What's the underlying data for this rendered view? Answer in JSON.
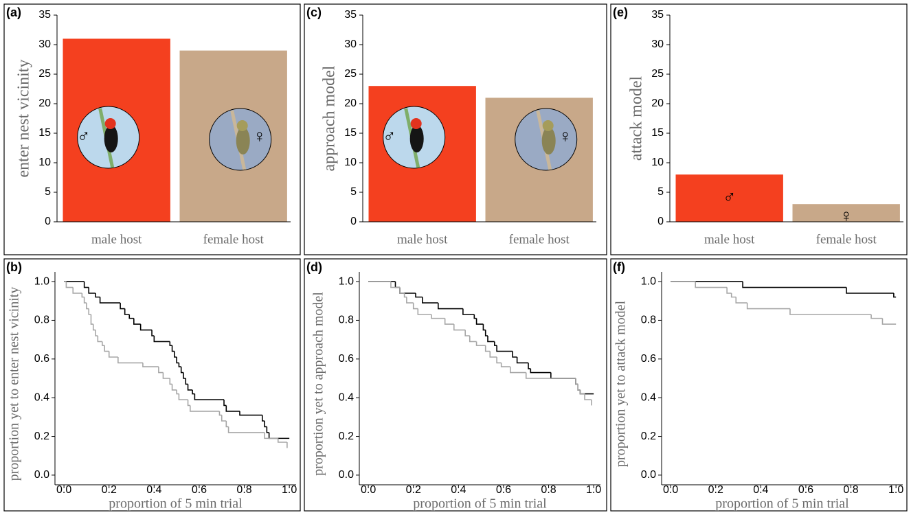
{
  "chart_data": [
    {
      "type": "bar",
      "label": "(a)",
      "ylabel": "enter nest vicinity",
      "categories": [
        "male host",
        "female host"
      ],
      "values": [
        31,
        29
      ],
      "colors": [
        "#f4401f",
        "#c8a889"
      ],
      "symbols": [
        "♂",
        "♀"
      ],
      "ylim": [
        0,
        35
      ],
      "yticks": [
        0,
        5,
        10,
        15,
        20,
        25,
        30,
        35
      ]
    },
    {
      "type": "step",
      "label": "(b)",
      "ylabel": "proportion yet to enter nest vicinity",
      "xlabel": "proportion of 5 min trial",
      "xlim": [
        -0.04,
        1.03
      ],
      "ylim": [
        -0.05,
        1.05
      ],
      "xticks": [
        {
          "value": 0,
          "label": "0.0"
        },
        {
          "value": 0.2,
          "label": "0.2"
        },
        {
          "value": 0.4,
          "label": "0.4"
        },
        {
          "value": 0.6,
          "label": "0.6"
        },
        {
          "value": 0.8,
          "label": "0.8"
        },
        {
          "value": 1,
          "label": "1.0"
        }
      ],
      "yticks": [
        {
          "value": 0,
          "label": "0.0"
        },
        {
          "value": 0.2,
          "label": "0.2"
        },
        {
          "value": 0.4,
          "label": "0.4"
        },
        {
          "value": 0.6,
          "label": "0.6"
        },
        {
          "value": 0.8,
          "label": "0.8"
        },
        {
          "value": 1,
          "label": "1.0"
        }
      ],
      "series": [
        {
          "color": "#000000",
          "x": [
            0,
            0.09,
            0.11,
            0.14,
            0.16,
            0.25,
            0.27,
            0.29,
            0.31,
            0.34,
            0.39,
            0.4,
            0.47,
            0.48,
            0.49,
            0.5,
            0.51,
            0.52,
            0.53,
            0.54,
            0.55,
            0.57,
            0.58,
            0.71,
            0.72,
            0.78,
            0.88,
            0.89,
            0.9,
            0.91,
            1.0
          ],
          "values": [
            1.0,
            0.97,
            0.94,
            0.92,
            0.89,
            0.86,
            0.83,
            0.81,
            0.78,
            0.75,
            0.72,
            0.69,
            0.67,
            0.64,
            0.61,
            0.58,
            0.56,
            0.53,
            0.5,
            0.47,
            0.44,
            0.42,
            0.39,
            0.36,
            0.33,
            0.31,
            0.28,
            0.25,
            0.22,
            0.19,
            0.19
          ]
        },
        {
          "color": "#a6a6a6",
          "x": [
            0,
            0.01,
            0.04,
            0.08,
            0.09,
            0.1,
            0.11,
            0.12,
            0.13,
            0.14,
            0.15,
            0.17,
            0.18,
            0.2,
            0.24,
            0.35,
            0.42,
            0.44,
            0.47,
            0.48,
            0.5,
            0.51,
            0.55,
            0.56,
            0.69,
            0.7,
            0.72,
            0.73,
            0.89,
            0.95,
            0.99
          ],
          "values": [
            1.0,
            0.97,
            0.94,
            0.92,
            0.89,
            0.86,
            0.83,
            0.78,
            0.75,
            0.72,
            0.69,
            0.67,
            0.64,
            0.61,
            0.58,
            0.56,
            0.53,
            0.5,
            0.47,
            0.44,
            0.42,
            0.39,
            0.36,
            0.33,
            0.31,
            0.28,
            0.25,
            0.22,
            0.19,
            0.17,
            0.14
          ]
        }
      ]
    },
    {
      "type": "bar",
      "label": "(c)",
      "ylabel": "approach model",
      "categories": [
        "male host",
        "female host"
      ],
      "values": [
        23,
        21
      ],
      "colors": [
        "#f4401f",
        "#c8a889"
      ],
      "symbols": [
        "♂",
        "♀"
      ],
      "ylim": [
        0,
        35
      ],
      "yticks": [
        0,
        5,
        10,
        15,
        20,
        25,
        30,
        35
      ]
    },
    {
      "type": "step",
      "label": "(d)",
      "ylabel": "proportion yet to approach model",
      "xlabel": "proportion of 5 min trial",
      "xlim": [
        -0.04,
        1.03
      ],
      "ylim": [
        -0.05,
        1.05
      ],
      "xticks": [
        {
          "value": 0,
          "label": "0.0"
        },
        {
          "value": 0.2,
          "label": "0.2"
        },
        {
          "value": 0.4,
          "label": "0.4"
        },
        {
          "value": 0.6,
          "label": "0.6"
        },
        {
          "value": 0.8,
          "label": "0.8"
        },
        {
          "value": 1,
          "label": "1.0"
        }
      ],
      "yticks": [
        {
          "value": 0,
          "label": "0.0"
        },
        {
          "value": 0.2,
          "label": "0.2"
        },
        {
          "value": 0.4,
          "label": "0.4"
        },
        {
          "value": 0.6,
          "label": "0.6"
        },
        {
          "value": 0.8,
          "label": "0.8"
        },
        {
          "value": 1,
          "label": "1.0"
        }
      ],
      "series": [
        {
          "color": "#000000",
          "x": [
            0,
            0.12,
            0.14,
            0.21,
            0.24,
            0.31,
            0.42,
            0.47,
            0.48,
            0.51,
            0.52,
            0.53,
            0.56,
            0.57,
            0.64,
            0.66,
            0.71,
            0.72,
            0.81,
            0.92,
            0.93,
            0.94,
            1.0
          ],
          "values": [
            1.0,
            0.97,
            0.94,
            0.92,
            0.89,
            0.86,
            0.83,
            0.81,
            0.78,
            0.75,
            0.72,
            0.69,
            0.67,
            0.64,
            0.61,
            0.58,
            0.55,
            0.53,
            0.5,
            0.47,
            0.44,
            0.42,
            0.42
          ]
        },
        {
          "color": "#a6a6a6",
          "x": [
            0,
            0.1,
            0.14,
            0.16,
            0.17,
            0.2,
            0.22,
            0.28,
            0.34,
            0.38,
            0.43,
            0.45,
            0.48,
            0.52,
            0.54,
            0.57,
            0.59,
            0.63,
            0.7,
            0.92,
            0.93,
            0.94,
            0.96,
            0.99
          ],
          "values": [
            1.0,
            0.97,
            0.94,
            0.92,
            0.89,
            0.86,
            0.83,
            0.81,
            0.78,
            0.75,
            0.72,
            0.69,
            0.67,
            0.64,
            0.61,
            0.58,
            0.56,
            0.53,
            0.5,
            0.47,
            0.44,
            0.42,
            0.39,
            0.36
          ]
        }
      ]
    },
    {
      "type": "bar",
      "label": "(e)",
      "ylabel": "attack model",
      "categories": [
        "male host",
        "female host"
      ],
      "values": [
        8,
        3
      ],
      "colors": [
        "#f4401f",
        "#c8a889"
      ],
      "symbols": [
        "♂",
        "♀"
      ],
      "ylim": [
        0,
        35
      ],
      "yticks": [
        0,
        5,
        10,
        15,
        20,
        25,
        30,
        35
      ]
    },
    {
      "type": "step",
      "label": "(f)",
      "ylabel": "proportion yet to attack model",
      "xlabel": "proportion of 5 min trial",
      "xlim": [
        -0.04,
        1.03
      ],
      "ylim": [
        -0.05,
        1.05
      ],
      "xticks": [
        {
          "value": 0,
          "label": "0.0"
        },
        {
          "value": 0.2,
          "label": "0.2"
        },
        {
          "value": 0.4,
          "label": "0.4"
        },
        {
          "value": 0.6,
          "label": "0.6"
        },
        {
          "value": 0.8,
          "label": "0.8"
        },
        {
          "value": 1,
          "label": "1.0"
        }
      ],
      "yticks": [
        {
          "value": 0,
          "label": "0.0"
        },
        {
          "value": 0.2,
          "label": "0.2"
        },
        {
          "value": 0.4,
          "label": "0.4"
        },
        {
          "value": 0.6,
          "label": "0.6"
        },
        {
          "value": 0.8,
          "label": "0.8"
        },
        {
          "value": 1,
          "label": "1.0"
        }
      ],
      "series": [
        {
          "color": "#000000",
          "x": [
            0,
            0.32,
            0.78,
            0.99,
            1.0
          ],
          "values": [
            1.0,
            0.97,
            0.94,
            0.92,
            0.92
          ]
        },
        {
          "color": "#a6a6a6",
          "x": [
            0,
            0.11,
            0.25,
            0.27,
            0.29,
            0.34,
            0.53,
            0.89,
            0.94,
            1.0
          ],
          "values": [
            1.0,
            0.97,
            0.94,
            0.92,
            0.89,
            0.86,
            0.83,
            0.81,
            0.78,
            0.78
          ]
        }
      ]
    }
  ]
}
